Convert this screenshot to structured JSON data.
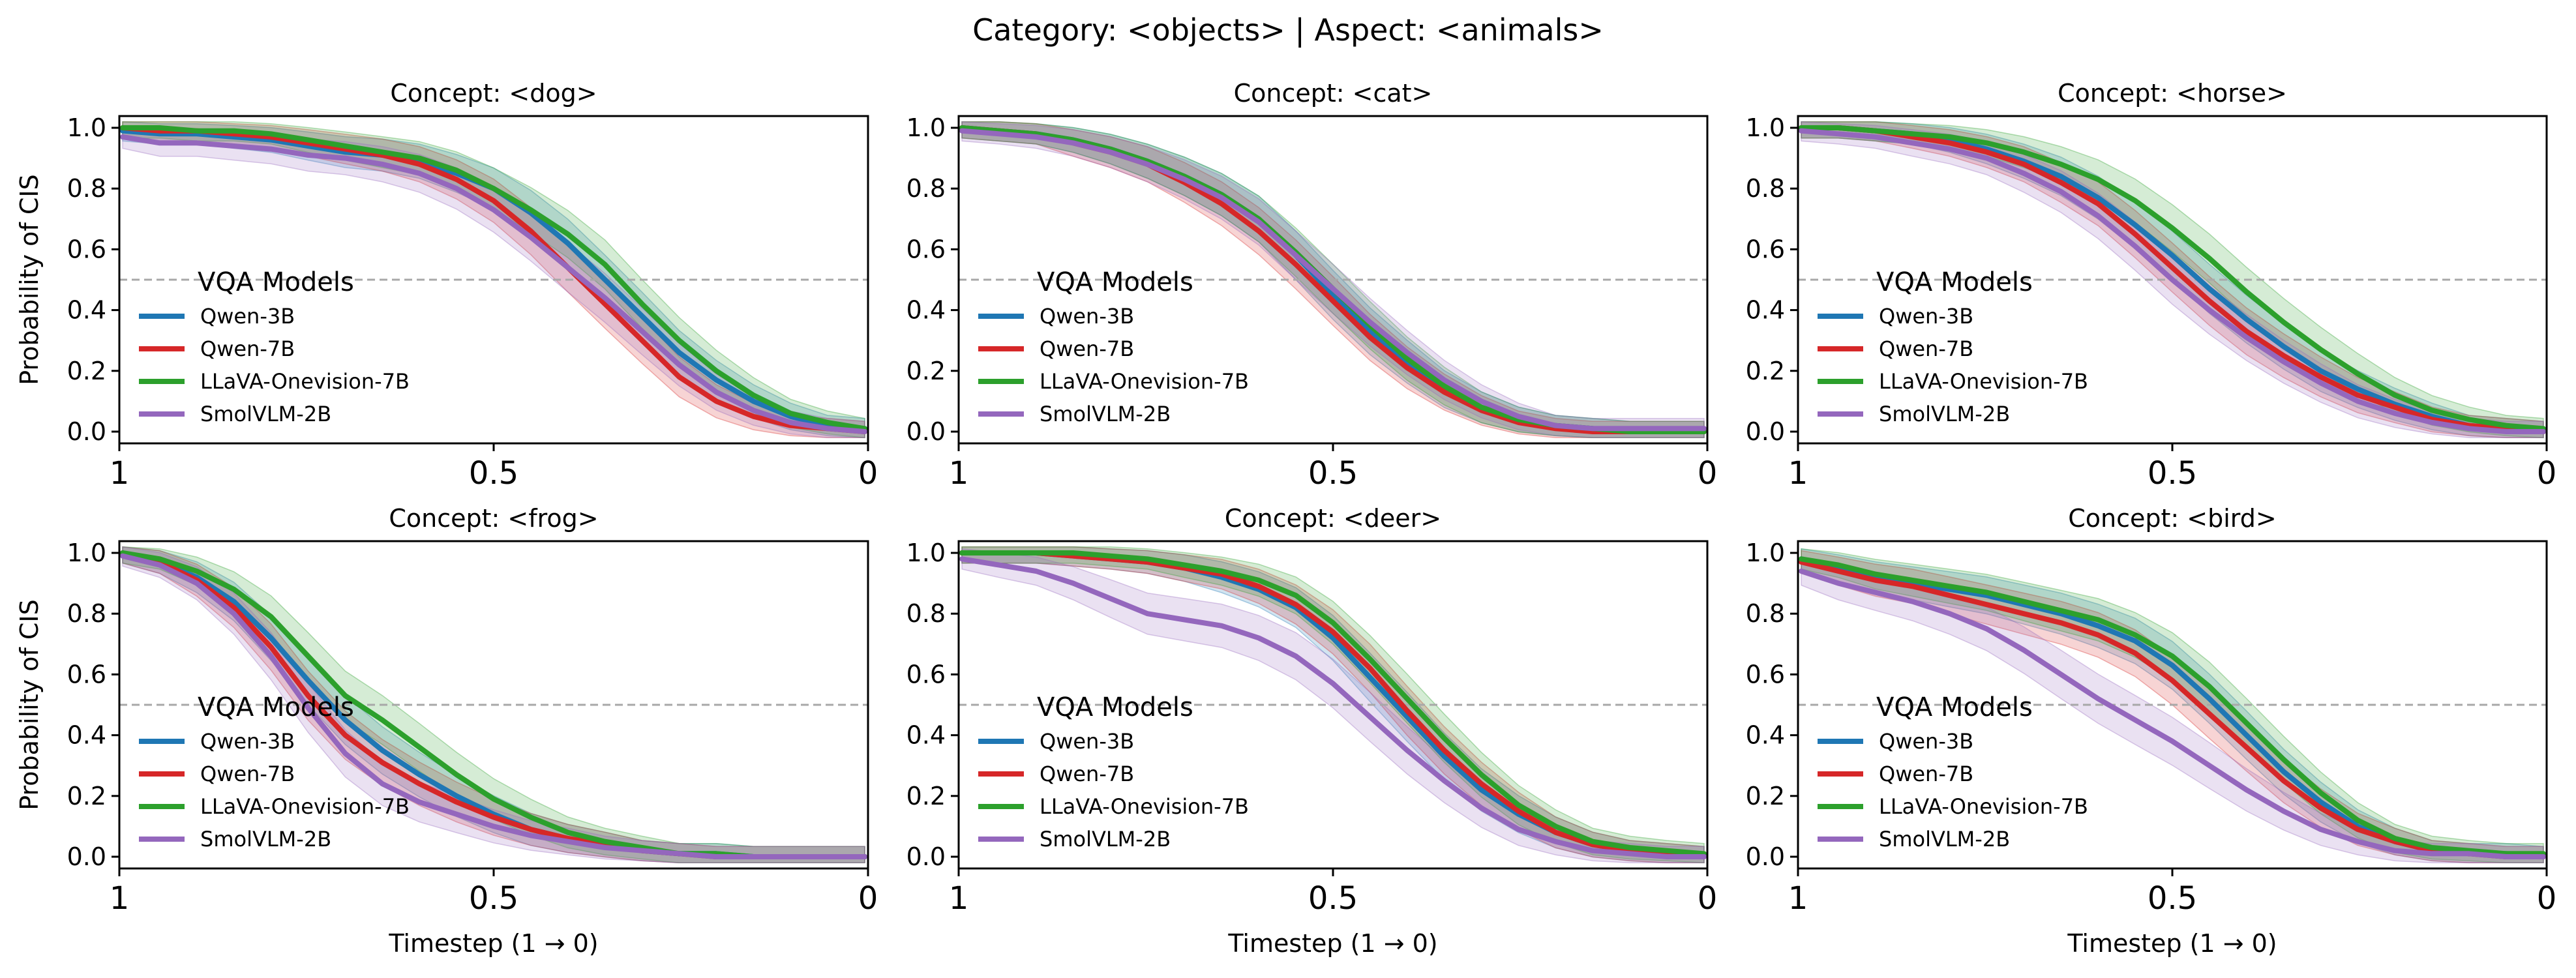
{
  "figure_title": "Category: <objects> | Aspect: <animals>",
  "chart_data": {
    "type": "line",
    "title": "Category: <objects> | Aspect: <animals>",
    "xlabel": "Timestep (1 → 0)",
    "ylabel": "Probability of CIS",
    "xlim": [
      1,
      0
    ],
    "ylim": [
      0,
      1
    ],
    "x_ticks": [
      "1",
      "0.5",
      "0"
    ],
    "y_ticks": [
      "0.0",
      "0.2",
      "0.4",
      "0.6",
      "0.8",
      "1.0"
    ],
    "reference_line": {
      "y": 0.5,
      "style": "dashed"
    },
    "legend": {
      "title": "VQA Models",
      "placement": "center-left",
      "entries": [
        "Qwen-3B",
        "Qwen-7B",
        "LLaVA-Onevision-7B",
        "SmolVLM-2B"
      ]
    },
    "series_colors": {
      "Qwen-3B": "#1f77b4",
      "Qwen-7B": "#d62728",
      "LLaVA-Onevision-7B": "#2ca02c",
      "SmolVLM-2B": "#9467bd"
    },
    "x": [
      1.0,
      0.95,
      0.9,
      0.85,
      0.8,
      0.75,
      0.7,
      0.65,
      0.6,
      0.55,
      0.5,
      0.45,
      0.4,
      0.35,
      0.3,
      0.25,
      0.2,
      0.15,
      0.1,
      0.05,
      0.0
    ],
    "panels": [
      {
        "title": "Concept: <dog>",
        "series": [
          {
            "name": "Qwen-3B",
            "values": [
              0.99,
              0.98,
              0.98,
              0.97,
              0.96,
              0.94,
              0.92,
              0.91,
              0.89,
              0.85,
              0.8,
              0.72,
              0.62,
              0.5,
              0.38,
              0.26,
              0.17,
              0.1,
              0.05,
              0.02,
              0.01
            ]
          },
          {
            "name": "Qwen-7B",
            "values": [
              1.0,
              0.99,
              0.99,
              0.98,
              0.97,
              0.95,
              0.93,
              0.91,
              0.88,
              0.83,
              0.76,
              0.66,
              0.54,
              0.42,
              0.3,
              0.18,
              0.1,
              0.05,
              0.02,
              0.01,
              0.0
            ]
          },
          {
            "name": "LLaVA-Onevision-7B",
            "values": [
              1.0,
              1.0,
              0.99,
              0.99,
              0.98,
              0.96,
              0.94,
              0.92,
              0.9,
              0.86,
              0.8,
              0.73,
              0.65,
              0.55,
              0.42,
              0.3,
              0.2,
              0.12,
              0.06,
              0.03,
              0.01
            ]
          },
          {
            "name": "SmolVLM-2B",
            "values": [
              0.97,
              0.95,
              0.95,
              0.94,
              0.93,
              0.91,
              0.9,
              0.88,
              0.85,
              0.8,
              0.73,
              0.64,
              0.54,
              0.44,
              0.33,
              0.22,
              0.13,
              0.07,
              0.03,
              0.01,
              0.0
            ]
          }
        ]
      },
      {
        "title": "Concept: <cat>",
        "series": [
          {
            "name": "Qwen-3B",
            "values": [
              1.0,
              0.99,
              0.98,
              0.96,
              0.93,
              0.89,
              0.84,
              0.78,
              0.7,
              0.58,
              0.45,
              0.33,
              0.23,
              0.14,
              0.08,
              0.04,
              0.02,
              0.01,
              0.0,
              0.0,
              0.0
            ]
          },
          {
            "name": "Qwen-7B",
            "values": [
              1.0,
              0.99,
              0.98,
              0.95,
              0.92,
              0.88,
              0.82,
              0.75,
              0.66,
              0.55,
              0.43,
              0.31,
              0.21,
              0.13,
              0.07,
              0.03,
              0.01,
              0.0,
              0.0,
              0.0,
              0.0
            ]
          },
          {
            "name": "LLaVA-Onevision-7B",
            "values": [
              1.0,
              0.99,
              0.98,
              0.96,
              0.93,
              0.89,
              0.84,
              0.78,
              0.7,
              0.59,
              0.47,
              0.35,
              0.24,
              0.15,
              0.08,
              0.04,
              0.02,
              0.01,
              0.0,
              0.0,
              0.0
            ]
          },
          {
            "name": "SmolVLM-2B",
            "values": [
              0.99,
              0.98,
              0.97,
              0.95,
              0.92,
              0.88,
              0.83,
              0.77,
              0.69,
              0.58,
              0.47,
              0.36,
              0.26,
              0.17,
              0.1,
              0.05,
              0.02,
              0.01,
              0.01,
              0.01,
              0.01
            ]
          }
        ]
      },
      {
        "title": "Concept: <horse>",
        "series": [
          {
            "name": "Qwen-3B",
            "values": [
              1.0,
              1.0,
              0.99,
              0.98,
              0.96,
              0.93,
              0.89,
              0.84,
              0.77,
              0.68,
              0.58,
              0.47,
              0.37,
              0.28,
              0.2,
              0.14,
              0.09,
              0.05,
              0.02,
              0.01,
              0.0
            ]
          },
          {
            "name": "Qwen-7B",
            "values": [
              1.0,
              1.0,
              0.99,
              0.97,
              0.95,
              0.92,
              0.88,
              0.82,
              0.75,
              0.65,
              0.54,
              0.43,
              0.33,
              0.25,
              0.18,
              0.12,
              0.08,
              0.04,
              0.02,
              0.01,
              0.0
            ]
          },
          {
            "name": "LLaVA-Onevision-7B",
            "values": [
              1.0,
              1.0,
              0.99,
              0.98,
              0.97,
              0.95,
              0.92,
              0.88,
              0.83,
              0.76,
              0.67,
              0.57,
              0.46,
              0.36,
              0.27,
              0.19,
              0.12,
              0.07,
              0.04,
              0.02,
              0.01
            ]
          },
          {
            "name": "SmolVLM-2B",
            "values": [
              0.99,
              0.98,
              0.97,
              0.95,
              0.93,
              0.9,
              0.85,
              0.79,
              0.71,
              0.61,
              0.5,
              0.4,
              0.31,
              0.23,
              0.16,
              0.1,
              0.06,
              0.03,
              0.01,
              0.0,
              0.0
            ]
          }
        ]
      },
      {
        "title": "Concept: <frog>",
        "series": [
          {
            "name": "Qwen-3B",
            "values": [
              1.0,
              0.97,
              0.92,
              0.84,
              0.72,
              0.58,
              0.45,
              0.35,
              0.27,
              0.2,
              0.14,
              0.09,
              0.06,
              0.04,
              0.02,
              0.01,
              0.01,
              0.0,
              0.0,
              0.0,
              0.0
            ]
          },
          {
            "name": "Qwen-7B",
            "values": [
              1.0,
              0.97,
              0.91,
              0.82,
              0.69,
              0.53,
              0.4,
              0.31,
              0.24,
              0.18,
              0.13,
              0.09,
              0.06,
              0.04,
              0.02,
              0.01,
              0.0,
              0.0,
              0.0,
              0.0,
              0.0
            ]
          },
          {
            "name": "LLaVA-Onevision-7B",
            "values": [
              1.0,
              0.98,
              0.94,
              0.88,
              0.79,
              0.66,
              0.53,
              0.45,
              0.36,
              0.27,
              0.19,
              0.13,
              0.08,
              0.05,
              0.03,
              0.01,
              0.01,
              0.0,
              0.0,
              0.0,
              0.0
            ]
          },
          {
            "name": "SmolVLM-2B",
            "values": [
              0.99,
              0.96,
              0.9,
              0.8,
              0.66,
              0.49,
              0.34,
              0.24,
              0.18,
              0.14,
              0.1,
              0.07,
              0.05,
              0.03,
              0.02,
              0.01,
              0.0,
              0.0,
              0.0,
              0.0,
              0.0
            ]
          }
        ]
      },
      {
        "title": "Concept: <deer>",
        "series": [
          {
            "name": "Qwen-3B",
            "values": [
              1.0,
              1.0,
              1.0,
              0.99,
              0.98,
              0.97,
              0.95,
              0.92,
              0.88,
              0.82,
              0.72,
              0.59,
              0.46,
              0.33,
              0.22,
              0.14,
              0.08,
              0.04,
              0.02,
              0.01,
              0.0
            ]
          },
          {
            "name": "Qwen-7B",
            "values": [
              1.0,
              1.0,
              1.0,
              0.99,
              0.98,
              0.97,
              0.95,
              0.93,
              0.89,
              0.83,
              0.74,
              0.62,
              0.48,
              0.35,
              0.24,
              0.15,
              0.08,
              0.04,
              0.02,
              0.01,
              0.0
            ]
          },
          {
            "name": "LLaVA-Onevision-7B",
            "values": [
              1.0,
              1.0,
              1.0,
              1.0,
              0.99,
              0.98,
              0.96,
              0.94,
              0.91,
              0.86,
              0.77,
              0.65,
              0.52,
              0.39,
              0.27,
              0.17,
              0.1,
              0.05,
              0.03,
              0.02,
              0.01
            ]
          },
          {
            "name": "SmolVLM-2B",
            "values": [
              0.98,
              0.96,
              0.94,
              0.9,
              0.85,
              0.8,
              0.78,
              0.76,
              0.72,
              0.66,
              0.57,
              0.46,
              0.35,
              0.25,
              0.16,
              0.09,
              0.05,
              0.02,
              0.01,
              0.0,
              0.0
            ]
          }
        ]
      },
      {
        "title": "Concept: <bird>",
        "series": [
          {
            "name": "Qwen-3B",
            "values": [
              0.98,
              0.95,
              0.92,
              0.9,
              0.88,
              0.86,
              0.83,
              0.8,
              0.76,
              0.71,
              0.63,
              0.52,
              0.4,
              0.28,
              0.18,
              0.1,
              0.05,
              0.02,
              0.01,
              0.01,
              0.0
            ]
          },
          {
            "name": "Qwen-7B",
            "values": [
              0.97,
              0.94,
              0.91,
              0.89,
              0.86,
              0.83,
              0.8,
              0.77,
              0.73,
              0.67,
              0.58,
              0.47,
              0.36,
              0.25,
              0.16,
              0.09,
              0.05,
              0.02,
              0.01,
              0.0,
              0.0
            ]
          },
          {
            "name": "LLaVA-Onevision-7B",
            "values": [
              0.98,
              0.96,
              0.93,
              0.91,
              0.89,
              0.87,
              0.84,
              0.81,
              0.78,
              0.73,
              0.66,
              0.56,
              0.44,
              0.32,
              0.21,
              0.12,
              0.06,
              0.03,
              0.02,
              0.01,
              0.01
            ]
          },
          {
            "name": "SmolVLM-2B",
            "values": [
              0.94,
              0.9,
              0.87,
              0.84,
              0.8,
              0.75,
              0.68,
              0.6,
              0.52,
              0.45,
              0.38,
              0.3,
              0.22,
              0.15,
              0.09,
              0.05,
              0.02,
              0.01,
              0.01,
              0.0,
              0.0
            ]
          }
        ]
      }
    ]
  }
}
